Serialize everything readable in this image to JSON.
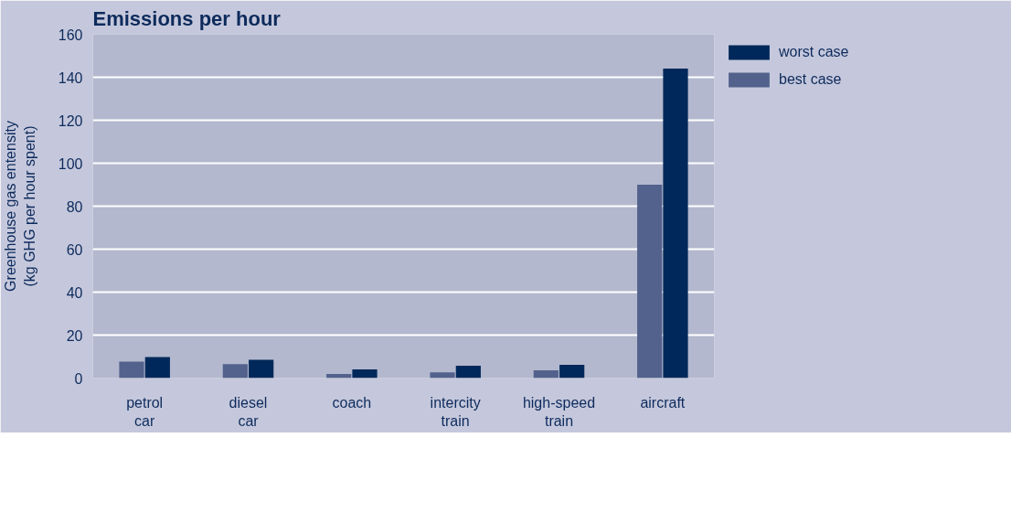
{
  "chart_data": {
    "type": "bar",
    "title": "Emissions per hour",
    "ylabel": "Greenhouse gas entensity\n(kg GHG per hour spent)",
    "categories": [
      "petrol car",
      "diesel car",
      "coach",
      "intercity train",
      "high-speed train",
      "aircraft"
    ],
    "series": [
      {
        "name": "best case",
        "color": "#52628c",
        "values": [
          7.7,
          6.5,
          1.9,
          2.7,
          3.6,
          90
        ]
      },
      {
        "name": "worst case",
        "color": "#00285a",
        "values": [
          9.8,
          8.5,
          4,
          5.7,
          6.2,
          144
        ]
      }
    ],
    "ylim": [
      0,
      160
    ],
    "yticks": [
      0,
      20,
      40,
      60,
      80,
      100,
      120,
      140,
      160
    ],
    "grid": "y",
    "legend": "top right"
  }
}
